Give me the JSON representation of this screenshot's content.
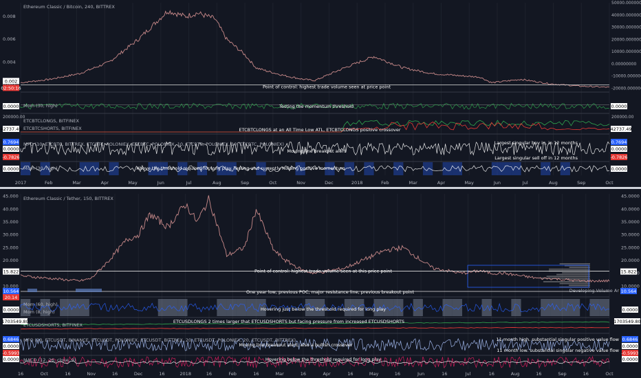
{
  "chart_data": [
    {
      "type": "line",
      "title": "Ethereum Classic / Bitcoin, 240, BITTREX",
      "x_ticks": [
        "2017",
        "Feb",
        "Mar",
        "Apr",
        "May",
        "Jun",
        "Jul",
        "Aug",
        "Sep",
        "Oct",
        "Nov",
        "Dec",
        "2018",
        "Feb",
        "Mar",
        "Apr",
        "May",
        "Jun",
        "Jul",
        "Aug",
        "Sep",
        "Oct"
      ],
      "left_axis": {
        "ticks": [
          "0.008",
          "0.006",
          "0.004",
          "0.002"
        ],
        "ylim": [
          0.0015,
          0.0092
        ]
      },
      "right_axis": {
        "ticks": [
          "50000.00000000",
          "40000.00000000",
          "30000.00000000",
          "20000.00000000",
          "10000.00000000",
          "0.00000000",
          "-10000.00000000",
          "-20000.00000000"
        ],
        "ylim": [
          -22000,
          50000
        ]
      },
      "price_series": {
        "x": [
          0,
          0.05,
          0.1,
          0.15,
          0.2,
          0.25,
          0.28,
          0.3,
          0.33,
          0.35,
          0.38,
          0.4,
          0.42,
          0.45,
          0.48,
          0.5,
          0.55,
          0.6,
          0.65,
          0.7,
          0.75,
          0.78,
          0.8,
          0.85,
          0.9,
          0.95,
          1.0
        ],
        "y": [
          0.0022,
          0.0025,
          0.003,
          0.004,
          0.006,
          0.0085,
          0.008,
          0.0083,
          0.0078,
          0.006,
          0.0047,
          0.0035,
          0.0032,
          0.0028,
          0.0025,
          0.0024,
          0.0035,
          0.0045,
          0.0035,
          0.003,
          0.0028,
          0.0027,
          0.0022,
          0.0025,
          0.0021,
          0.0019,
          0.0018
        ]
      },
      "poc_price": 0.00202,
      "price_tag": "02:50:16",
      "annotations": [
        "Point of control: highest trade volume seen at price point",
        "Testing the momentum threshold",
        "ETCBTCLONGS at an All Time Low ATL, ETCBTCLONGS positive crossover",
        "Largest singular buy in, in 12 months",
        "Moving line breakout alert",
        "Largest singular sell off in 12 months",
        "Above the threshold required for long play. Testing and currently holding positive momentum"
      ],
      "indicators": [
        {
          "label": "Mom (30, high)",
          "value_tag_left": "0.0000",
          "value_tag_right": "0.0000"
        },
        {
          "label": "ETCBTCLONGS, BITFINEX",
          "label2": "ETCBTCSHORTS, BITFINEX",
          "value_tag_left": "42737.49",
          "value_tag_right": "42737.49",
          "axis_top": "200000.00"
        },
        {
          "label": "MFO (10, ETCBTC, BITTREX, ETCBTC, POLONIEX, ETCBTC, POLONIEX, 10, ETCBTC, POLONIEX, 10, ETCBTC, POLONIEX)",
          "value_tag_left": "0.7694",
          "value_tag_left2": "-0.7826",
          "value_tag_right": "0.7694",
          "value_tag_right2": "-0.7826"
        },
        {
          "label": "Mom (30, high)",
          "value_tag_left": "0.0000",
          "value_tag_right": "0.0000"
        }
      ]
    },
    {
      "type": "line",
      "title": "Ethereum Classic / Tether, 150, BITTREX",
      "x_ticks": [
        "16",
        "Oct",
        "16",
        "Nov",
        "16",
        "Dec",
        "16",
        "2018",
        "16",
        "Feb",
        "16",
        "Mar",
        "16",
        "Apr",
        "16",
        "May",
        "16",
        "Jun",
        "16",
        "Jul",
        "16",
        "Aug",
        "16",
        "Sep",
        "16",
        "Oct"
      ],
      "left_axis": {
        "ticks": [
          "45.000",
          "40.000",
          "35.000",
          "30.000",
          "25.000",
          "20.000",
          "15.000",
          "10.000"
        ],
        "ylim": [
          9,
          46
        ]
      },
      "right_axis": {
        "ticks": [
          "45.0000",
          "40.0000",
          "35.0000",
          "30.0000",
          "25.0000",
          "20.0000",
          "15.0000",
          "10.0000"
        ],
        "ylim": [
          9,
          46
        ]
      },
      "price_series": {
        "x": [
          0,
          0.05,
          0.1,
          0.12,
          0.15,
          0.18,
          0.2,
          0.22,
          0.25,
          0.28,
          0.3,
          0.32,
          0.35,
          0.38,
          0.4,
          0.43,
          0.45,
          0.48,
          0.5,
          0.55,
          0.6,
          0.62,
          0.65,
          0.7,
          0.75,
          0.78,
          0.8,
          0.82,
          0.85,
          0.88,
          0.9,
          0.95,
          1.0
        ],
        "y": [
          14,
          13,
          12,
          13,
          20,
          28,
          30,
          38,
          33,
          42,
          35,
          44,
          22,
          25,
          40,
          24,
          20,
          16,
          15,
          17,
          22,
          24,
          25,
          17,
          15,
          16,
          15,
          15,
          14,
          13,
          13,
          12,
          12
        ]
      },
      "poc_price": 15.822,
      "price_tags": [
        "15.822",
        "10.564",
        "20.14"
      ],
      "volume_profile_label": "Developing Volume Ar",
      "annotations": [
        "Point of control: highest trade volume seen at this price point",
        "One year low, previous POC, major resistance line, previous breakout point",
        "Hovering just below the threshold required for long play",
        "ETCUSDLONGS 2 times larger that ETCUSDSHORTS but facing pressure from increased ETCUSDSHORTS",
        "11 month high. substantial singular positive value flow",
        "11 month low. substantial singular negative value flow",
        "Moving line breakout alert, also a bullish crossover",
        "Hovering below the threshold required for long play"
      ],
      "indicators": [
        {
          "label": "Mom (60, high)",
          "label2": "Mom (8, high)",
          "value_tag_left": "0.0000",
          "value_tag_right": "0.0000"
        },
        {
          "label": "ETCUSDSHORTS, BITFINEX",
          "value_tag_left": "1703549.80",
          "value_tag_right": "1703549.80"
        },
        {
          "label": "MFO (20, ETCUSDT, BINANCE, ETCUSDT, POLONIEX, ETCUSDT, BITTREX, 20, ETCUSDT, POLONIEX, 20, ETCUSDT, BITTREX)",
          "value_tag_left": "0.6846",
          "value_tag_left2": "-0.5993",
          "value_tag_right": "0.6846",
          "value_tag_right2": "-0.5993"
        },
        {
          "label": "MACD (12, 26, close, 9)",
          "value_tag_left": "0.0000",
          "value_tag_right": "0.0000"
        }
      ]
    }
  ],
  "colors": {
    "background": "#131722",
    "price_line": "#c98a8a",
    "text": "#b2b5be",
    "momentum": "#2fa84f",
    "longs": "#2fa84f",
    "shorts": "#e53935",
    "mfo": "#ffffff",
    "mom_fill": "#2962ff",
    "macd": "#e91e63",
    "poc": "#e0e0e0",
    "tag_bg": "#ffffff",
    "tag_red": "#e53935",
    "tag_blue": "#2962ff"
  }
}
